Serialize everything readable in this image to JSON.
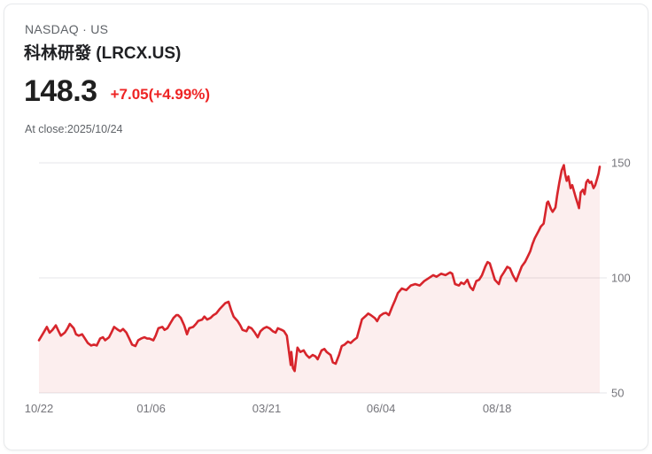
{
  "header": {
    "exchange": "NASDAQ · US",
    "title": "科林研發 (LRCX.US)",
    "price": "148.3",
    "change": "+7.05(+4.99%)",
    "close_info": "At close:2025/10/24"
  },
  "colors": {
    "price_text": "#1f1f1f",
    "change_text": "#ee2424",
    "muted_text": "#5f6368"
  },
  "chart_data": {
    "type": "area",
    "title": "LRCX.US 1-year price chart",
    "xlabel": "",
    "ylabel": "",
    "ylim": [
      50,
      150
    ],
    "y_ticks": [
      150,
      100,
      50
    ],
    "x_ticks": [
      {
        "label": "10/22",
        "f": 0.0
      },
      {
        "label": "01/06",
        "f": 0.2
      },
      {
        "label": "03/21",
        "f": 0.406
      },
      {
        "label": "06/04",
        "f": 0.61
      },
      {
        "label": "08/18",
        "f": 0.817
      }
    ],
    "legend": "none",
    "grid": "horizontal",
    "line_color": "#d7252c",
    "fill_opacity": 0.08,
    "grid_color": "#e5e5e8",
    "axis_text_color": "#75757b",
    "points": [
      [
        0,
        72.9
      ],
      [
        0.008,
        76.2
      ],
      [
        0.014,
        78.7
      ],
      [
        0.019,
        76.2
      ],
      [
        0.024,
        77.4
      ],
      [
        0.03,
        79.4
      ],
      [
        0.035,
        76.8
      ],
      [
        0.039,
        74.9
      ],
      [
        0.046,
        76.2
      ],
      [
        0.051,
        78.1
      ],
      [
        0.055,
        80.0
      ],
      [
        0.062,
        78.1
      ],
      [
        0.066,
        75.5
      ],
      [
        0.071,
        74.9
      ],
      [
        0.077,
        75.5
      ],
      [
        0.082,
        73.6
      ],
      [
        0.087,
        71.7
      ],
      [
        0.093,
        70.6
      ],
      [
        0.098,
        71.0
      ],
      [
        0.103,
        70.6
      ],
      [
        0.109,
        73.6
      ],
      [
        0.114,
        74.2
      ],
      [
        0.118,
        72.9
      ],
      [
        0.125,
        74.2
      ],
      [
        0.129,
        76.2
      ],
      [
        0.134,
        78.7
      ],
      [
        0.141,
        77.4
      ],
      [
        0.145,
        76.8
      ],
      [
        0.15,
        77.8
      ],
      [
        0.156,
        76.2
      ],
      [
        0.161,
        73.6
      ],
      [
        0.166,
        71.0
      ],
      [
        0.172,
        70.4
      ],
      [
        0.177,
        72.9
      ],
      [
        0.182,
        73.6
      ],
      [
        0.188,
        74.2
      ],
      [
        0.193,
        73.6
      ],
      [
        0.197,
        73.6
      ],
      [
        0.204,
        72.9
      ],
      [
        0.208,
        74.9
      ],
      [
        0.213,
        78.1
      ],
      [
        0.22,
        78.7
      ],
      [
        0.224,
        77.4
      ],
      [
        0.229,
        78.1
      ],
      [
        0.235,
        80.6
      ],
      [
        0.24,
        82.6
      ],
      [
        0.245,
        83.8
      ],
      [
        0.248,
        83.8
      ],
      [
        0.253,
        82.6
      ],
      [
        0.259,
        79.4
      ],
      [
        0.264,
        75.5
      ],
      [
        0.268,
        78.1
      ],
      [
        0.275,
        78.7
      ],
      [
        0.28,
        80.0
      ],
      [
        0.284,
        81.3
      ],
      [
        0.291,
        81.9
      ],
      [
        0.295,
        83.2
      ],
      [
        0.3,
        81.9
      ],
      [
        0.306,
        82.6
      ],
      [
        0.311,
        83.8
      ],
      [
        0.316,
        84.5
      ],
      [
        0.322,
        86.4
      ],
      [
        0.327,
        87.7
      ],
      [
        0.332,
        89.0
      ],
      [
        0.338,
        89.6
      ],
      [
        0.343,
        85.8
      ],
      [
        0.347,
        83.2
      ],
      [
        0.354,
        81.3
      ],
      [
        0.359,
        79.4
      ],
      [
        0.363,
        77.4
      ],
      [
        0.37,
        76.8
      ],
      [
        0.374,
        78.7
      ],
      [
        0.379,
        78.1
      ],
      [
        0.385,
        76.2
      ],
      [
        0.39,
        74.2
      ],
      [
        0.395,
        76.8
      ],
      [
        0.401,
        78.1
      ],
      [
        0.406,
        78.7
      ],
      [
        0.411,
        78.1
      ],
      [
        0.417,
        76.8
      ],
      [
        0.422,
        76.2
      ],
      [
        0.426,
        78.1
      ],
      [
        0.433,
        77.4
      ],
      [
        0.437,
        76.8
      ],
      [
        0.442,
        74.9
      ],
      [
        0.449,
        62.1
      ],
      [
        0.45,
        67.8
      ],
      [
        0.453,
        60.8
      ],
      [
        0.456,
        59.5
      ],
      [
        0.461,
        69.7
      ],
      [
        0.466,
        67.8
      ],
      [
        0.472,
        68.5
      ],
      [
        0.477,
        66.5
      ],
      [
        0.482,
        65.3
      ],
      [
        0.488,
        66.5
      ],
      [
        0.493,
        65.9
      ],
      [
        0.497,
        64.6
      ],
      [
        0.504,
        68.5
      ],
      [
        0.509,
        69.1
      ],
      [
        0.513,
        67.8
      ],
      [
        0.52,
        66.5
      ],
      [
        0.524,
        63.3
      ],
      [
        0.529,
        62.7
      ],
      [
        0.535,
        66.5
      ],
      [
        0.54,
        70.4
      ],
      [
        0.545,
        71.0
      ],
      [
        0.551,
        72.3
      ],
      [
        0.556,
        71.7
      ],
      [
        0.561,
        72.9
      ],
      [
        0.567,
        74.0
      ],
      [
        0.572,
        78.5
      ],
      [
        0.576,
        82.0
      ],
      [
        0.583,
        83.5
      ],
      [
        0.587,
        84.5
      ],
      [
        0.592,
        83.8
      ],
      [
        0.599,
        82.5
      ],
      [
        0.603,
        81.2
      ],
      [
        0.608,
        83.5
      ],
      [
        0.614,
        84.5
      ],
      [
        0.619,
        84.8
      ],
      [
        0.624,
        83.8
      ],
      [
        0.63,
        87.5
      ],
      [
        0.635,
        90.3
      ],
      [
        0.64,
        93.4
      ],
      [
        0.647,
        95.4
      ],
      [
        0.655,
        94.7
      ],
      [
        0.663,
        96.7
      ],
      [
        0.671,
        97.3
      ],
      [
        0.679,
        96.7
      ],
      [
        0.687,
        98.6
      ],
      [
        0.695,
        99.9
      ],
      [
        0.703,
        101.2
      ],
      [
        0.709,
        100.5
      ],
      [
        0.717,
        101.8
      ],
      [
        0.725,
        101.2
      ],
      [
        0.733,
        102.4
      ],
      [
        0.737,
        101.8
      ],
      [
        0.742,
        97.3
      ],
      [
        0.749,
        96.7
      ],
      [
        0.753,
        98.0
      ],
      [
        0.758,
        97.3
      ],
      [
        0.764,
        99.2
      ],
      [
        0.769,
        96.0
      ],
      [
        0.774,
        94.7
      ],
      [
        0.78,
        98.6
      ],
      [
        0.785,
        99.2
      ],
      [
        0.79,
        101.2
      ],
      [
        0.796,
        105.0
      ],
      [
        0.8,
        106.9
      ],
      [
        0.804,
        106.3
      ],
      [
        0.808,
        103.1
      ],
      [
        0.813,
        99.2
      ],
      [
        0.82,
        97.3
      ],
      [
        0.824,
        100.5
      ],
      [
        0.829,
        102.4
      ],
      [
        0.835,
        104.8
      ],
      [
        0.84,
        104.1
      ],
      [
        0.845,
        101.2
      ],
      [
        0.851,
        98.6
      ],
      [
        0.856,
        101.8
      ],
      [
        0.861,
        105.0
      ],
      [
        0.867,
        107.0
      ],
      [
        0.872,
        109.5
      ],
      [
        0.876,
        111.5
      ],
      [
        0.88,
        114.6
      ],
      [
        0.884,
        117.2
      ],
      [
        0.891,
        120.4
      ],
      [
        0.895,
        122.3
      ],
      [
        0.9,
        123.6
      ],
      [
        0.906,
        132.6
      ],
      [
        0.908,
        133.2
      ],
      [
        0.913,
        130.0
      ],
      [
        0.916,
        128.7
      ],
      [
        0.921,
        130.6
      ],
      [
        0.924,
        135.8
      ],
      [
        0.928,
        141.5
      ],
      [
        0.932,
        146.7
      ],
      [
        0.936,
        149.0
      ],
      [
        0.938,
        145.4
      ],
      [
        0.941,
        142.2
      ],
      [
        0.944,
        144.1
      ],
      [
        0.948,
        139.0
      ],
      [
        0.951,
        140.3
      ],
      [
        0.954,
        137.7
      ],
      [
        0.957,
        135.1
      ],
      [
        0.962,
        131.3
      ],
      [
        0.963,
        130.3
      ],
      [
        0.966,
        137.1
      ],
      [
        0.97,
        138.3
      ],
      [
        0.973,
        136.4
      ],
      [
        0.976,
        141.5
      ],
      [
        0.979,
        142.6
      ],
      [
        0.982,
        141.3
      ],
      [
        0.985,
        141.8
      ],
      [
        0.989,
        139.0
      ],
      [
        0.992,
        140.3
      ],
      [
        0.995,
        142.8
      ],
      [
        0.998,
        145.4
      ],
      [
        1,
        148.3
      ]
    ]
  }
}
